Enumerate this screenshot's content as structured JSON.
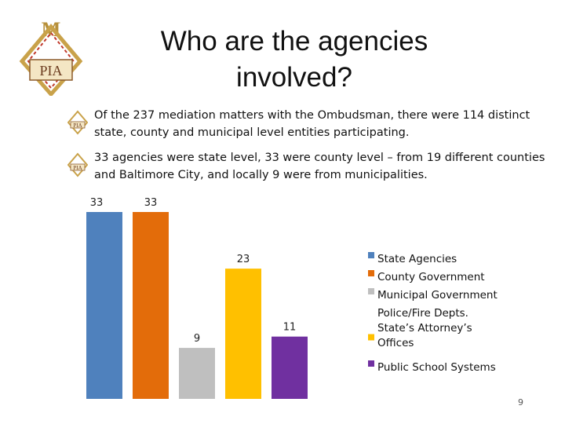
{
  "slide": {
    "title": "Who are the agencies involved?",
    "page_number": "9",
    "logo_text": {
      "top": "M",
      "bottom": "PIA"
    }
  },
  "bullets": [
    {
      "text": "Of the 237 mediation matters with the Ombudsman, there were 114 distinct state, county and municipal level entities participating.",
      "icon": "pia-logo-icon"
    },
    {
      "text": "33 agencies were state level, 33 were county level – from 19 different counties and Baltimore City, and locally 9 were from municipalities.",
      "icon": "pia-logo-icon"
    }
  ],
  "chart_data": {
    "type": "bar",
    "title": "",
    "xlabel": "",
    "ylabel": "",
    "ylim": [
      0,
      33
    ],
    "grid": false,
    "legend_position": "right",
    "series": [
      {
        "name": "State Agencies",
        "value": 33,
        "label": "33",
        "color": "#4f81bd"
      },
      {
        "name": "County Government",
        "value": 33,
        "label": "33",
        "color": "#e36c0a"
      },
      {
        "name": "Municipal Government",
        "value": 9,
        "label": "9",
        "color": "#bfbfbf"
      },
      {
        "name": "Police/Fire Depts. State’s Attorney’s Offices",
        "value": 23,
        "label": "23",
        "color": "#ffc000"
      },
      {
        "name": "Public School Systems",
        "value": 11,
        "label": "11",
        "color": "#7030a0"
      }
    ]
  }
}
